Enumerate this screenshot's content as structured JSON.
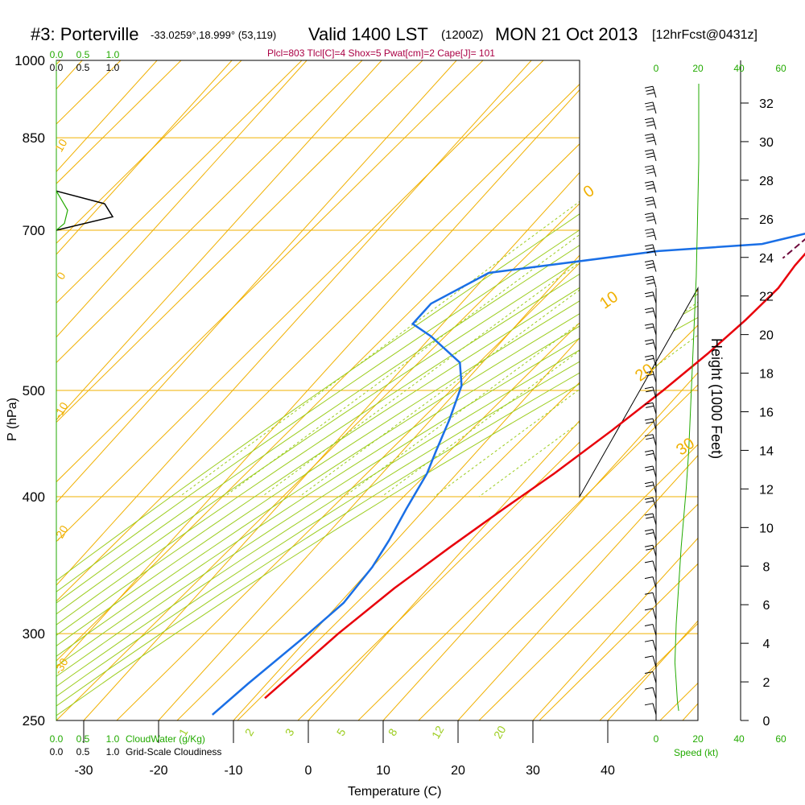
{
  "header": {
    "station": "#3: Porterville",
    "coords": "-33.0259°,18.999° (53,119)",
    "valid": "Valid 1400 LST",
    "zulu": "(1200Z)",
    "date": "MON 21 Oct 2013",
    "forecast": "[12hrFcst@0431z]",
    "indices": "Plcl=803 Tlcl[C]=4 Shox=5 Pwat[cm]=2 Cape[J]= 101"
  },
  "colors": {
    "temp": "#e8000b",
    "dew": "#1a6fe6",
    "parcel": "#6e0a3c",
    "isotherm": "#f0b000",
    "adiabat": "#9ccd1f",
    "mixing": "#9ccd1f",
    "green_text": "#22aa00",
    "indices": "#aa0044"
  },
  "chart_data": {
    "type": "line",
    "title": "#3: Porterville Valid 1400 LST (1200Z) MON 21 Oct 2013",
    "xlabel": "Temperature (C)",
    "ylabel": "P (hPa)",
    "right_ylabel": "Height (1000 Feet)",
    "xlim": [
      -34,
      36
    ],
    "ylim_hpa": [
      1000,
      250
    ],
    "x_ticks": [
      "-30",
      "-20",
      "-10",
      "0",
      "10",
      "20",
      "30",
      "40"
    ],
    "x_tick_values": [
      -30,
      -20,
      -10,
      0,
      10,
      20,
      30,
      40
    ],
    "p_ticks": [
      "250",
      "300",
      "400",
      "500",
      "700",
      "850",
      "1000"
    ],
    "p_tick_values": [
      250,
      300,
      400,
      500,
      700,
      850,
      1000
    ],
    "height_ticks": [
      "0",
      "2",
      "4",
      "6",
      "8",
      "10",
      "12",
      "14",
      "16",
      "18",
      "20",
      "22",
      "24",
      "26",
      "28",
      "30",
      "32"
    ],
    "height_tick_values": [
      0,
      2,
      4,
      6,
      8,
      10,
      12,
      14,
      16,
      18,
      20,
      22,
      24,
      26,
      28,
      30,
      32
    ],
    "cloud_scale_top_green": [
      "0.0",
      "0.5",
      "1.0"
    ],
    "cloud_scale_top_black": [
      "0.0",
      "0.5",
      "1.0"
    ],
    "cloud_scale_bottom_green": [
      "0.0",
      "0.5",
      "1.0"
    ],
    "cloud_scale_bottom_black": [
      "0.0",
      "0.5",
      "1.0"
    ],
    "cloudwater_label": "CloudWater (g/Kg)",
    "cloudiness_label": "Grid-Scale Cloudiness",
    "speed_ticks_top": [
      "0",
      "20",
      "40",
      "60"
    ],
    "speed_ticks_bottom": [
      "0",
      "20",
      "40",
      "60"
    ],
    "speed_label": "Speed (kt)",
    "isotherm_labels": [
      "10",
      "0",
      "-10",
      "-20",
      "-30",
      "0",
      "10",
      "20",
      "30"
    ],
    "mixing_ratio_labels": [
      "1",
      "2",
      "3",
      "5",
      "8",
      "12",
      "20"
    ],
    "series": [
      {
        "name": "Temperature",
        "values": [
          [
            23.9,
            995
          ],
          [
            22,
            970
          ],
          [
            20,
            930
          ],
          [
            17.5,
            900
          ],
          [
            15.5,
            860
          ],
          [
            13.5,
            820
          ],
          [
            12,
            790
          ],
          [
            11,
            760
          ],
          [
            10.3,
            720
          ],
          [
            9.9,
            690
          ],
          [
            10,
            650
          ],
          [
            10.5,
            620
          ],
          [
            10,
            580
          ],
          [
            9,
            540
          ],
          [
            7.5,
            500
          ],
          [
            5.5,
            460
          ],
          [
            3,
            420
          ],
          [
            0.5,
            390
          ],
          [
            -2,
            360
          ],
          [
            -4.5,
            330
          ],
          [
            -6.5,
            300
          ],
          [
            -7.5,
            280
          ],
          [
            -8.5,
            262
          ]
        ]
      },
      {
        "name": "Dew point",
        "values": [
          [
            11.2,
            995
          ],
          [
            9,
            993
          ],
          [
            8.3,
            985
          ],
          [
            8.5,
            960
          ],
          [
            8.8,
            920
          ],
          [
            9.5,
            860
          ],
          [
            10.2,
            800
          ],
          [
            10.8,
            760
          ],
          [
            10.9,
            740
          ],
          [
            10.5,
            720
          ],
          [
            9,
            700
          ],
          [
            3,
            680
          ],
          [
            -10,
            670
          ],
          [
            -30,
            640
          ],
          [
            -34,
            600
          ],
          [
            -34,
            575
          ],
          [
            -30,
            560
          ],
          [
            -23,
            530
          ],
          [
            -20,
            505
          ],
          [
            -17.5,
            470
          ],
          [
            -15.5,
            440
          ],
          [
            -14,
            420
          ],
          [
            -12.5,
            390
          ],
          [
            -11,
            365
          ],
          [
            -10,
            345
          ],
          [
            -9.5,
            320
          ],
          [
            -10.5,
            300
          ],
          [
            -12.5,
            270
          ],
          [
            -13.5,
            253
          ]
        ]
      },
      {
        "name": "Parcel",
        "values": [
          [
            23.9,
            995
          ],
          [
            19.5,
            950
          ],
          [
            16,
            900
          ],
          [
            13,
            850
          ],
          [
            11.5,
            800
          ],
          [
            10,
            750
          ],
          [
            8.5,
            700
          ],
          [
            7.5,
            660
          ]
        ]
      }
    ],
    "cloud_profile": [
      [
        0.0,
        700
      ],
      [
        0.35,
        720
      ],
      [
        0.3,
        740
      ],
      [
        0.0,
        760
      ]
    ],
    "wind_speed_profile": [
      [
        18,
        1000
      ],
      [
        17,
        950
      ],
      [
        16,
        900
      ],
      [
        15,
        850
      ],
      [
        16,
        800
      ],
      [
        18,
        750
      ],
      [
        20,
        720
      ],
      [
        22,
        700
      ],
      [
        24,
        660
      ],
      [
        26,
        620
      ],
      [
        28,
        560
      ],
      [
        30,
        500
      ],
      [
        32,
        440
      ],
      [
        33,
        400
      ],
      [
        34,
        350
      ],
      [
        34,
        300
      ],
      [
        34,
        260
      ]
    ]
  }
}
